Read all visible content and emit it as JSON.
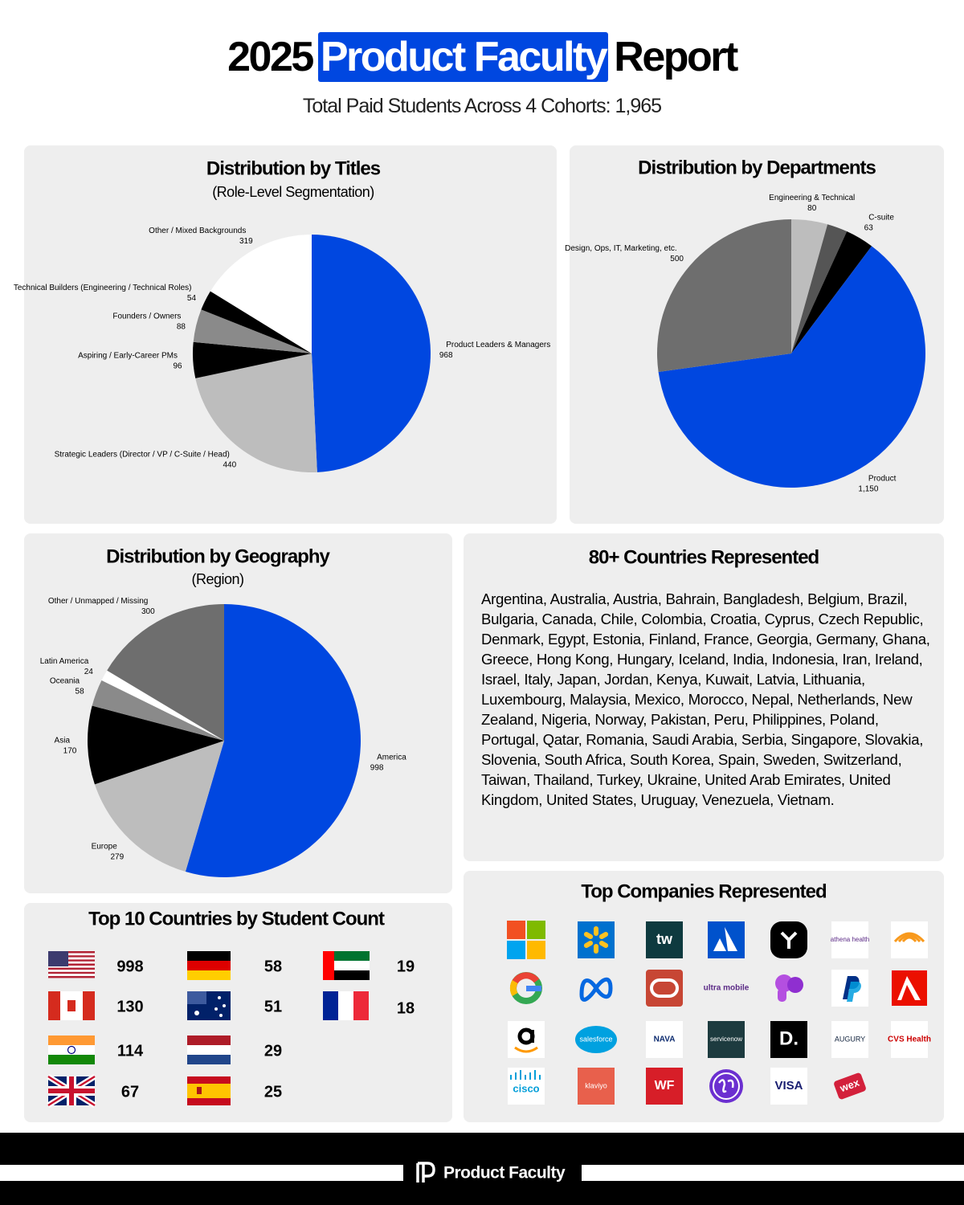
{
  "header": {
    "title_parts": [
      "2025",
      "Product Faculty",
      "Report"
    ],
    "subtitle": "Total Paid Students Across 4 Cohorts: 1,965"
  },
  "chart_data": [
    {
      "type": "pie",
      "title": "Distribution by Titles",
      "subtitle": "(Role-Level Segmentation)",
      "categories": [
        "Product Leaders & Managers",
        "Strategic Leaders (Director / VP / C-Suite / Head)",
        "Aspiring / Early-Career PMs",
        "Founders / Owners",
        "Technical Builders (Engineering / Technical Roles)",
        "Other / Mixed Backgrounds"
      ],
      "values": [
        968,
        440,
        96,
        88,
        54,
        319
      ],
      "colors": [
        "#0047e0",
        "#bdbdbd",
        "#000000",
        "#8a8a8a",
        "#000000",
        "#ffffff"
      ]
    },
    {
      "type": "pie",
      "title": "Distribution by Departments",
      "categories": [
        "Engineering & Technical",
        null,
        "C-suite",
        "Product",
        "Design, Ops, IT, Marketing, etc."
      ],
      "values": [
        80,
        45,
        63,
        1150,
        500
      ],
      "value_labels": [
        "80",
        null,
        "63",
        "1,150",
        "500"
      ],
      "colors": [
        "#bdbdbd",
        "#555555",
        "#000000",
        "#0047e0",
        "#6e6e6e"
      ]
    },
    {
      "type": "pie",
      "title": "Distribution by Geography",
      "subtitle": "(Region)",
      "categories": [
        "America",
        "Europe",
        "Asia",
        "Oceania",
        "Latin America",
        "Other / Unmapped / Missing"
      ],
      "values": [
        998,
        279,
        170,
        58,
        24,
        300
      ],
      "colors": [
        "#0047e0",
        "#bdbdbd",
        "#000000",
        "#8a8a8a",
        "#ffffff",
        "#6e6e6e"
      ]
    }
  ],
  "countries": {
    "title": "80+ Countries Represented",
    "list": "Argentina, Australia, Austria, Bahrain, Bangladesh, Belgium, Brazil, Bulgaria, Canada, Chile, Colombia, Croatia, Cyprus, Czech Republic, Denmark, Egypt, Estonia, Finland, France, Georgia, Germany, Ghana, Greece, Hong Kong, Hungary, Iceland, India, Indonesia, Iran, Ireland, Israel, Italy, Japan, Jordan, Kenya, Kuwait, Latvia, Lithuania, Luxembourg, Malaysia, Mexico, Morocco, Nepal, Netherlands, New Zealand, Nigeria, Norway, Pakistan, Peru, Philippines, Poland, Portugal, Qatar, Romania, Saudi Arabia, Serbia, Singapore, Slovakia, Slovenia, South Africa, South Korea, Spain, Sweden, Switzerland, Taiwan, Thailand, Turkey, Ukraine, United Arab Emirates, United Kingdom, United States, Uruguay, Venezuela, Vietnam."
  },
  "top_countries": {
    "title": "Top 10 Countries by Student Count",
    "counts": [
      998,
      130,
      114,
      67,
      58,
      51,
      29,
      25,
      19,
      18
    ]
  },
  "companies": {
    "title": "Top Companies Represented",
    "logos": [
      "tw",
      "athena health",
      "ultra mobile",
      "salesforce",
      "NAVA",
      "servicenow",
      "D.",
      "AUGURY",
      "CVS Health",
      "cisco",
      "klaviyo",
      "WF",
      "VISA",
      "wex"
    ]
  },
  "footer": {
    "brand": "Product Faculty"
  }
}
